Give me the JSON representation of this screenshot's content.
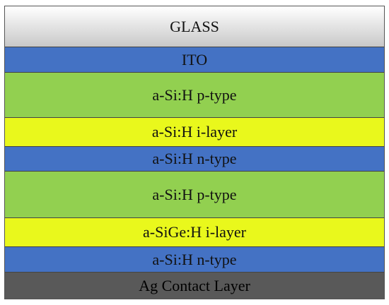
{
  "layers": [
    {
      "label": "GLASS"
    },
    {
      "label": "ITO"
    },
    {
      "label": "a-Si:H p-type"
    },
    {
      "label": "a-Si:H i-layer"
    },
    {
      "label": "a-Si:H n-type"
    },
    {
      "label": "a-Si:H p-type"
    },
    {
      "label": "a-SiGe:H i-layer"
    },
    {
      "label": "a-Si:H n-type"
    },
    {
      "label": "Ag Contact Layer"
    }
  ]
}
